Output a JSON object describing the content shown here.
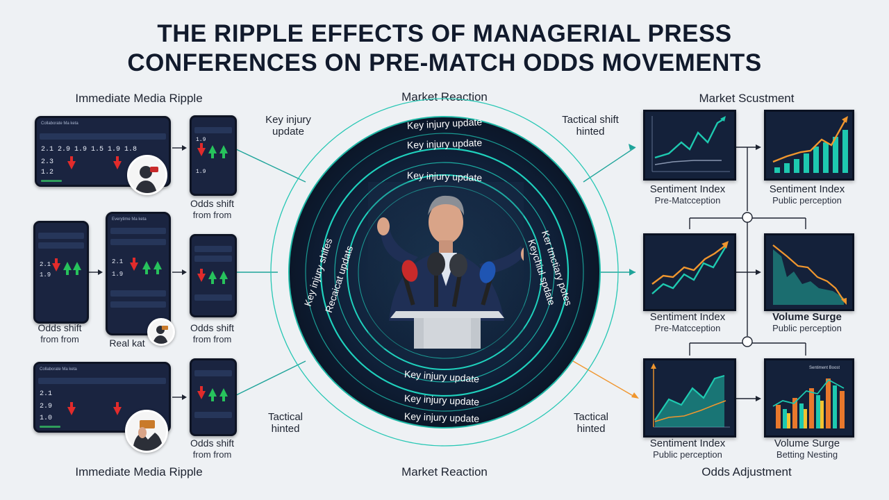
{
  "title_line1": "THE RIPPLE EFFECTS OF MANAGERIAL PRESS",
  "title_line2": "CONFERENCES ON PRE-MATCH ODDS MOVEMENTS",
  "headers": {
    "top_left": "Immediate Media Ripple",
    "top_center": "Market Reaction",
    "top_right": "Market Scustment",
    "bottom_left": "Immediate Media Ripple",
    "bottom_center": "Market Reaction",
    "bottom_right": "Odds Adjustment"
  },
  "left_labels": {
    "r1_phone": [
      "Odds shift",
      "from from"
    ],
    "r2_left": [
      "Odds shift",
      "from from"
    ],
    "r2_center": "Real kat",
    "r2_right": [
      "Odds shift",
      "from from"
    ],
    "r3_phone": [
      "Odds shift",
      "from from"
    ]
  },
  "side_notes": {
    "key_injury": [
      "Key injury",
      "update"
    ],
    "tactical_shift": [
      "Tactical shift",
      "hinted"
    ],
    "tactical_left": [
      "Tactical",
      "hinted"
    ],
    "tactical_right": [
      "Tactical",
      "hinted"
    ]
  },
  "ring_texts": {
    "top1": "Key injury update",
    "top2": "Key injury update",
    "top3": "Key injury update",
    "bottom1": "Key injury update",
    "bottom2": "Key injury update",
    "bottom3": "Key injury update",
    "left1": "Key injury shifes",
    "left2": "Recaicat updats",
    "right1": "Ker tmctiary potes",
    "right2": "Keychiul spdate"
  },
  "screens": {
    "s1_title": "Collaborate Ma keta",
    "s1_rows": [
      "2.1   2.9   1.9   1.5   1.9   1.8",
      "2.3",
      "1.2"
    ],
    "s2_rows": [
      "1.9",
      "1.9"
    ],
    "s3_rows": [
      "2.1",
      "2.9",
      "1.0"
    ],
    "s3_title": "Collaborate Ma keta",
    "s4_title": "Everytime Ma keta",
    "s4_rows": [
      "2.1",
      "1.9"
    ],
    "mid_rows": [
      "2.1",
      "1.9"
    ]
  },
  "right_charts": [
    {
      "title": "Sentiment Index",
      "sub": "Pre-Matcception"
    },
    {
      "title": "Sentiment Index",
      "sub": "Public perception"
    },
    {
      "title": "Sentiment Index",
      "sub": "Pre-Matcception"
    },
    {
      "title": "Volume Surge",
      "sub": "Public perception"
    },
    {
      "title": "Sentiment Index",
      "sub": "Public perception"
    },
    {
      "title": "Volume Surge",
      "sub": "Betting Nesting"
    }
  ],
  "chart_tag": "Sentiment Boost",
  "colors": {
    "teal": "#1ec9b0",
    "orange": "#f0962e",
    "navy": "#14213a",
    "red": "#e22b2b",
    "green": "#27c25c"
  }
}
